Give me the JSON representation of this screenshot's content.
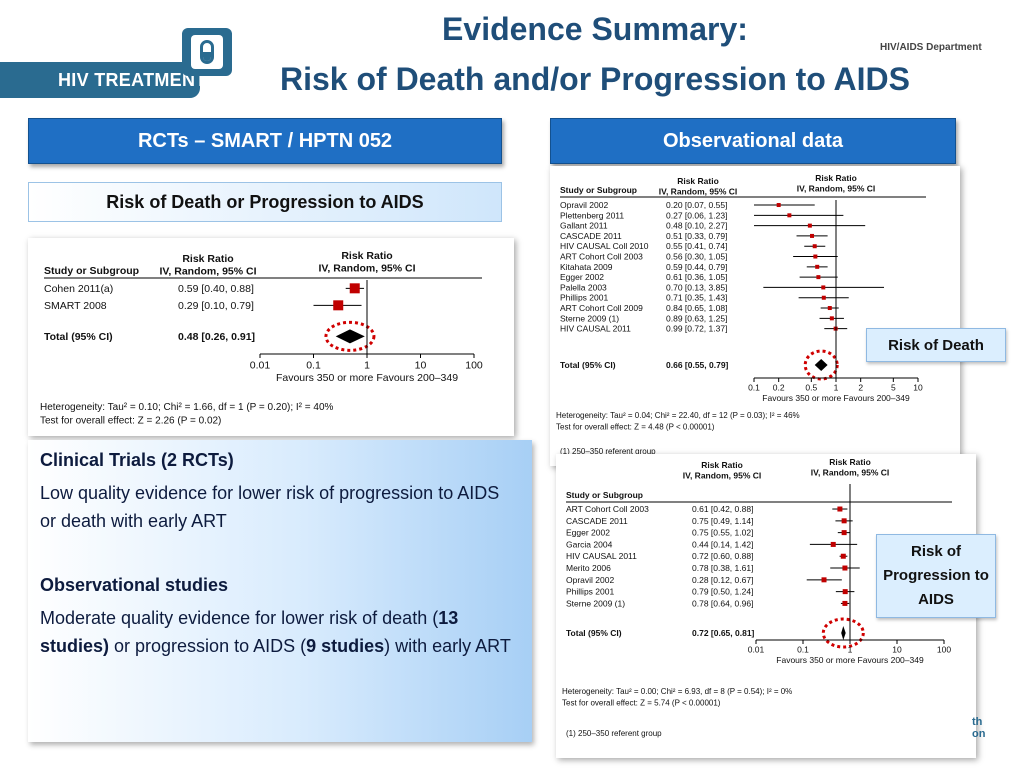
{
  "title": {
    "line1": "Evidence Summary:",
    "line2": "Risk of Death and/or Progression to AIDS"
  },
  "logo": {
    "text": "HIV TREATMENT",
    "icon": "pill-icon"
  },
  "department": "HIV/AIDS Department",
  "left": {
    "header": "RCTs – SMART / HPTN 052",
    "subheader": "Risk of Death or Progression to AIDS",
    "forest": {
      "col_study": "Study or Subgroup",
      "col_rr_title": "Risk Ratio",
      "col_rr_method": "IV, Random, 95% CI",
      "col_plot_title": "Risk Ratio",
      "col_plot_method": "IV, Random, 95% CI",
      "rows": [
        {
          "study": "Cohen 2011(a)",
          "ci": "0.59 [0.40, 0.88]",
          "rr": 0.59,
          "low": 0.4,
          "high": 0.88
        },
        {
          "study": "SMART 2008",
          "ci": "0.29 [0.10, 0.79]",
          "rr": 0.29,
          "low": 0.1,
          "high": 0.79
        }
      ],
      "total": {
        "label": "Total (95% CI)",
        "ci": "0.48 [0.26, 0.91]",
        "rr": 0.48,
        "low": 0.26,
        "high": 0.91
      },
      "axis_ticks": [
        "0.01",
        "0.1",
        "1",
        "10",
        "100"
      ],
      "favours": "Favours 350 or more   Favours 200–349",
      "heterogeneity": "Heterogeneity: Tau² = 0.10; Chi² = 1.66, df = 1 (P = 0.20); I² = 40%",
      "overall": "Test for overall effect: Z = 2.26 (P = 0.02)"
    }
  },
  "textbox": {
    "h1": "Clinical Trials (2 RCTs)",
    "p1": "Low quality evidence for lower risk of progression to AIDS or death with early ART",
    "h2": "Observational studies",
    "p2_a": "Moderate quality evidence for lower risk of death  (",
    "p2_b": "13 studies)",
    "p2_c": " or progression to AIDS  (",
    "p2_d": "9 studies",
    "p2_e": ") with early ART"
  },
  "right": {
    "header": "Observational data",
    "death": {
      "col_study": "Study or Subgroup",
      "col_rr_title": "Risk Ratio",
      "col_rr_method": "IV, Random, 95% CI",
      "col_plot_title": "Risk Ratio",
      "col_plot_method": "IV, Random, 95% CI",
      "rows": [
        {
          "study": "Opravil 2002",
          "ci": "0.20 [0.07, 0.55]",
          "rr": 0.2,
          "low": 0.07,
          "high": 0.55
        },
        {
          "study": "Plettenberg 2011",
          "ci": "0.27 [0.06, 1.23]",
          "rr": 0.27,
          "low": 0.06,
          "high": 1.23
        },
        {
          "study": "Gallant 2011",
          "ci": "0.48 [0.10, 2.27]",
          "rr": 0.48,
          "low": 0.1,
          "high": 2.27
        },
        {
          "study": "CASCADE 2011",
          "ci": "0.51 [0.33, 0.79]",
          "rr": 0.51,
          "low": 0.33,
          "high": 0.79
        },
        {
          "study": "HIV CAUSAL Coll 2010",
          "ci": "0.55 [0.41, 0.74]",
          "rr": 0.55,
          "low": 0.41,
          "high": 0.74
        },
        {
          "study": "ART Cohort Coll 2003",
          "ci": "0.56 [0.30, 1.05]",
          "rr": 0.56,
          "low": 0.3,
          "high": 1.05
        },
        {
          "study": "Kitahata 2009",
          "ci": "0.59 [0.44, 0.79]",
          "rr": 0.59,
          "low": 0.44,
          "high": 0.79
        },
        {
          "study": "Egger 2002",
          "ci": "0.61 [0.36, 1.05]",
          "rr": 0.61,
          "low": 0.36,
          "high": 1.05
        },
        {
          "study": "Palella 2003",
          "ci": "0.70 [0.13, 3.85]",
          "rr": 0.7,
          "low": 0.13,
          "high": 3.85
        },
        {
          "study": "Phillips 2001",
          "ci": "0.71 [0.35, 1.43]",
          "rr": 0.71,
          "low": 0.35,
          "high": 1.43
        },
        {
          "study": "ART Cohort Coll 2009",
          "ci": "0.84 [0.65, 1.08]",
          "rr": 0.84,
          "low": 0.65,
          "high": 1.08
        },
        {
          "study": "Sterne 2009 (1)",
          "ci": "0.89 [0.63, 1.25]",
          "rr": 0.89,
          "low": 0.63,
          "high": 1.25
        },
        {
          "study": "HIV CAUSAL 2011",
          "ci": "0.99 [0.72, 1.37]",
          "rr": 0.99,
          "low": 0.72,
          "high": 1.37
        }
      ],
      "total": {
        "label": "Total (95% CI)",
        "ci": "0.66 [0.55, 0.79]",
        "rr": 0.66,
        "low": 0.55,
        "high": 0.79
      },
      "axis_ticks": [
        "0.1",
        "0.2",
        "0.5",
        "1",
        "2",
        "5",
        "10"
      ],
      "favours": "Favours 350 or more   Favours 200–349",
      "heterogeneity": "Heterogeneity: Tau² = 0.04; Chi² = 22.40, df = 12 (P = 0.03); I² = 46%",
      "overall": "Test for overall effect: Z = 4.48 (P < 0.00001)",
      "footnote": "(1) 250–350 referent group"
    },
    "progression": {
      "col_study": "Study or Subgroup",
      "col_rr_title": "Risk Ratio",
      "col_rr_method": "IV, Random, 95% CI",
      "col_plot_title": "Risk Ratio",
      "col_plot_method": "IV, Random, 95% CI",
      "rows": [
        {
          "study": "ART Cohort Coll 2003",
          "ci": "0.61 [0.42, 0.88]",
          "rr": 0.61,
          "low": 0.42,
          "high": 0.88
        },
        {
          "study": "CASCADE 2011",
          "ci": "0.75 [0.49, 1.14]",
          "rr": 0.75,
          "low": 0.49,
          "high": 1.14
        },
        {
          "study": "Egger 2002",
          "ci": "0.75 [0.55, 1.02]",
          "rr": 0.75,
          "low": 0.55,
          "high": 1.02
        },
        {
          "study": "Garcia 2004",
          "ci": "0.44 [0.14, 1.42]",
          "rr": 0.44,
          "low": 0.14,
          "high": 1.42
        },
        {
          "study": "HIV CAUSAL 2011",
          "ci": "0.72 [0.60, 0.88]",
          "rr": 0.72,
          "low": 0.6,
          "high": 0.88
        },
        {
          "study": "Merito 2006",
          "ci": "0.78 [0.38, 1.61]",
          "rr": 0.78,
          "low": 0.38,
          "high": 1.61
        },
        {
          "study": "Opravil 2002",
          "ci": "0.28 [0.12, 0.67]",
          "rr": 0.28,
          "low": 0.12,
          "high": 0.67
        },
        {
          "study": "Phillips 2001",
          "ci": "0.79 [0.50, 1.24]",
          "rr": 0.79,
          "low": 0.5,
          "high": 1.24
        },
        {
          "study": "Sterne 2009 (1)",
          "ci": "0.78 [0.64, 0.96]",
          "rr": 0.78,
          "low": 0.64,
          "high": 0.96
        }
      ],
      "total": {
        "label": "Total (95% CI)",
        "ci": "0.72 [0.65, 0.81]",
        "rr": 0.72,
        "low": 0.65,
        "high": 0.81
      },
      "axis_ticks": [
        "0.01",
        "0.1",
        "1",
        "10",
        "100"
      ],
      "favours": "Favours 350 or more   Favours 200–349",
      "heterogeneity": "Heterogeneity: Tau² = 0.00; Chi² = 6.93, df = 8 (P = 0.54); I² = 0%",
      "overall": "Test for overall effect: Z = 5.74 (P < 0.00001)",
      "footnote": "(1) 250–350 referent group"
    },
    "callout_death": "Risk of Death",
    "callout_progression": "Risk of Progression to AIDS"
  },
  "corner_text": "th\non",
  "colors": {
    "header_blue": "#1f6fc4",
    "title_blue": "#1f4e79",
    "marker_red": "#c00000",
    "dotted_circle": "#d00000"
  }
}
